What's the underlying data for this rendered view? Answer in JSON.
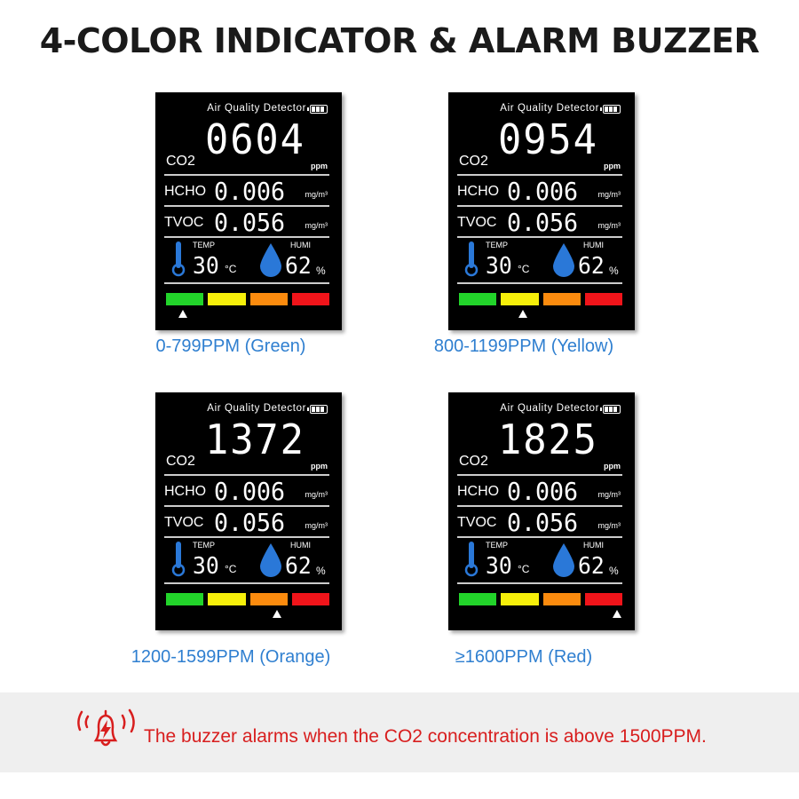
{
  "title": "4-COLOR INDICATOR & ALARM BUZZER",
  "panel_labels": {
    "title": "Air Quality Detector",
    "co2": "CO2",
    "ppm": "ppm",
    "hcho": "HCHO",
    "tvoc": "TVOC",
    "unit": "mg/m³",
    "temp": "TEMP",
    "humi": "HUMI",
    "temp_unit": "°C",
    "humi_unit": "%"
  },
  "bar_colors": [
    "#22d42a",
    "#f6ef0a",
    "#fb8b0e",
    "#f0141a"
  ],
  "panels": [
    {
      "co2": "0604",
      "hcho": "0.006",
      "tvoc": "0.056",
      "temp": "30",
      "humi": "62",
      "indicator": 0,
      "caption": "0-799PPM (Green)"
    },
    {
      "co2": "0954",
      "hcho": "0.006",
      "tvoc": "0.056",
      "temp": "30",
      "humi": "62",
      "indicator": 1,
      "caption": "800-1199PPM (Yellow)"
    },
    {
      "co2": "1372",
      "hcho": "0.006",
      "tvoc": "0.056",
      "temp": "30",
      "humi": "62",
      "indicator": 2,
      "caption": "1200-1599PPM (Orange)"
    },
    {
      "co2": "1825",
      "hcho": "0.006",
      "tvoc": "0.056",
      "temp": "30",
      "humi": "62",
      "indicator": 3,
      "caption": "≥1600PPM (Red)"
    }
  ],
  "alarm": {
    "icon": "alarm-bell-icon",
    "text": "The buzzer alarms when the CO2 concentration is above 1500PPM.",
    "color": "#d81e1e"
  }
}
